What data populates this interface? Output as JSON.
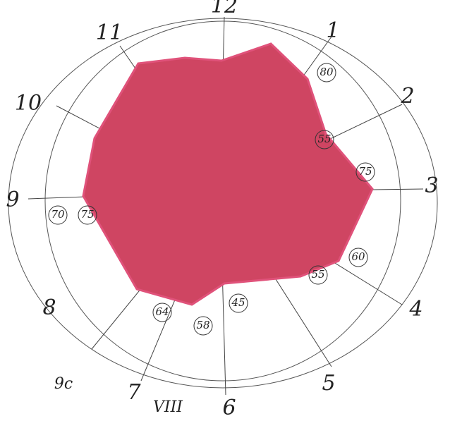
{
  "hours": [
    "12",
    "1",
    "2",
    "3",
    "4",
    "5",
    "6",
    "7",
    "8",
    "9",
    "10",
    "11"
  ],
  "extra_labels": [
    "9c",
    "VIII"
  ],
  "circled_values": [
    "80",
    "55",
    "75",
    "60",
    "55",
    "45",
    "58",
    "64",
    "75",
    "70"
  ]
}
